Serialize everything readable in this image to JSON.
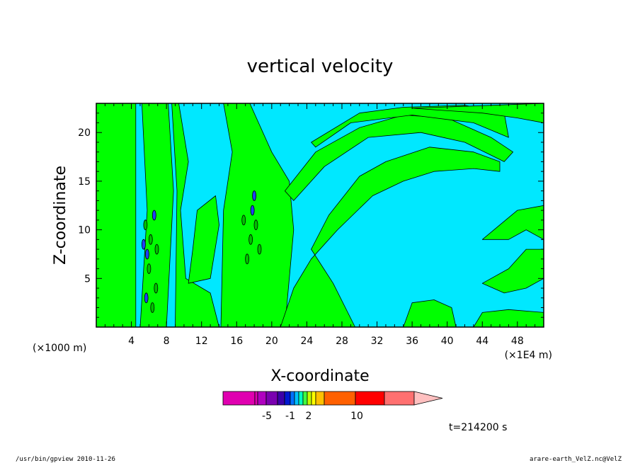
{
  "chart_data": {
    "type": "heatmap",
    "title": "vertical velocity",
    "xlabel": "X-coordinate",
    "ylabel": "Z-coordinate",
    "x_unit_left": "(×1000 m)",
    "x_unit_right": "(×1E4 m)",
    "xlim": [
      0,
      51
    ],
    "ylim": [
      0,
      23
    ],
    "x_ticks": [
      4,
      8,
      12,
      16,
      20,
      24,
      28,
      32,
      36,
      40,
      44,
      48
    ],
    "y_ticks": [
      5,
      10,
      15,
      20
    ],
    "time_label": "t=214200 s",
    "colorbar": {
      "labels": [
        {
          "text": "-5",
          "index": 3
        },
        {
          "text": "-1",
          "index": 7
        },
        {
          "text": "2",
          "index": 10
        },
        {
          "text": "10",
          "index": 14
        }
      ],
      "colors": [
        "#e000b0",
        "#e000b0",
        "#b000c0",
        "#7a00b0",
        "#3c00a8",
        "#0018d0",
        "#0070ff",
        "#00c0ff",
        "#00ffc0",
        "#40ff40",
        "#c0ff00",
        "#ffff00",
        "#ffc000",
        "#ff9000",
        "#ff6000",
        "#ff0000",
        "#ff7070",
        "#ffc0c0"
      ]
    },
    "legend": "none",
    "grid": false
  },
  "footer": {
    "left": "/usr/bin/gpview   2010-11-26",
    "right": "arare-earth_VelZ.nc@VelZ"
  }
}
